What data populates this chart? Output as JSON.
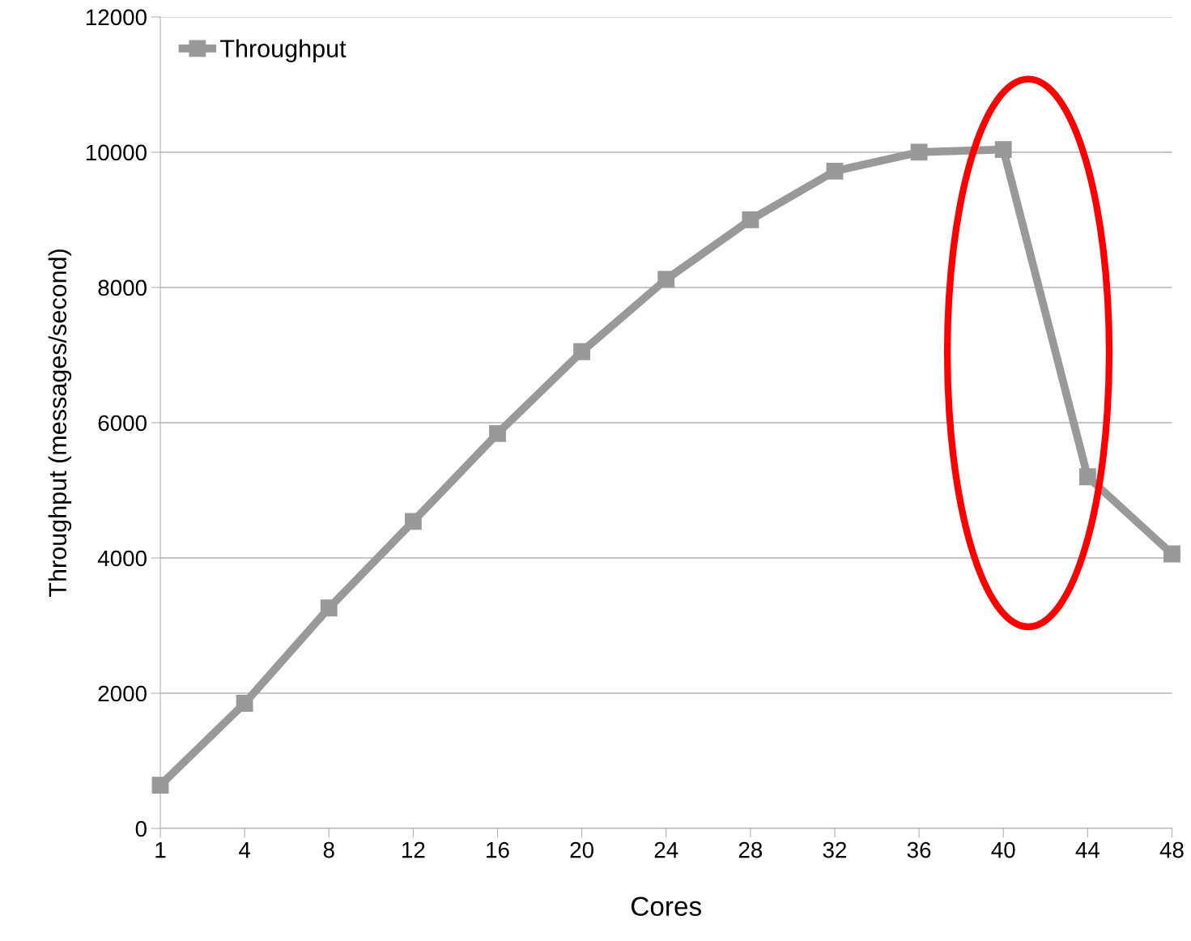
{
  "chart_data": {
    "type": "line",
    "xlabel": "Cores",
    "ylabel": "Throughput (messages/second)",
    "categories": [
      "1",
      "4",
      "8",
      "12",
      "16",
      "20",
      "24",
      "28",
      "32",
      "36",
      "40",
      "44",
      "48"
    ],
    "series": [
      {
        "name": "Throughput",
        "color": "#999999",
        "values": [
          640,
          1850,
          3260,
          4540,
          5840,
          7050,
          8120,
          9000,
          9720,
          10000,
          10040,
          5200,
          4060
        ]
      }
    ],
    "ylim": [
      0,
      12000
    ],
    "yticks": [
      0,
      2000,
      4000,
      6000,
      8000,
      10000,
      12000
    ],
    "grid": "y",
    "legend": "top left",
    "marker": "square",
    "line_style": "solid"
  }
}
